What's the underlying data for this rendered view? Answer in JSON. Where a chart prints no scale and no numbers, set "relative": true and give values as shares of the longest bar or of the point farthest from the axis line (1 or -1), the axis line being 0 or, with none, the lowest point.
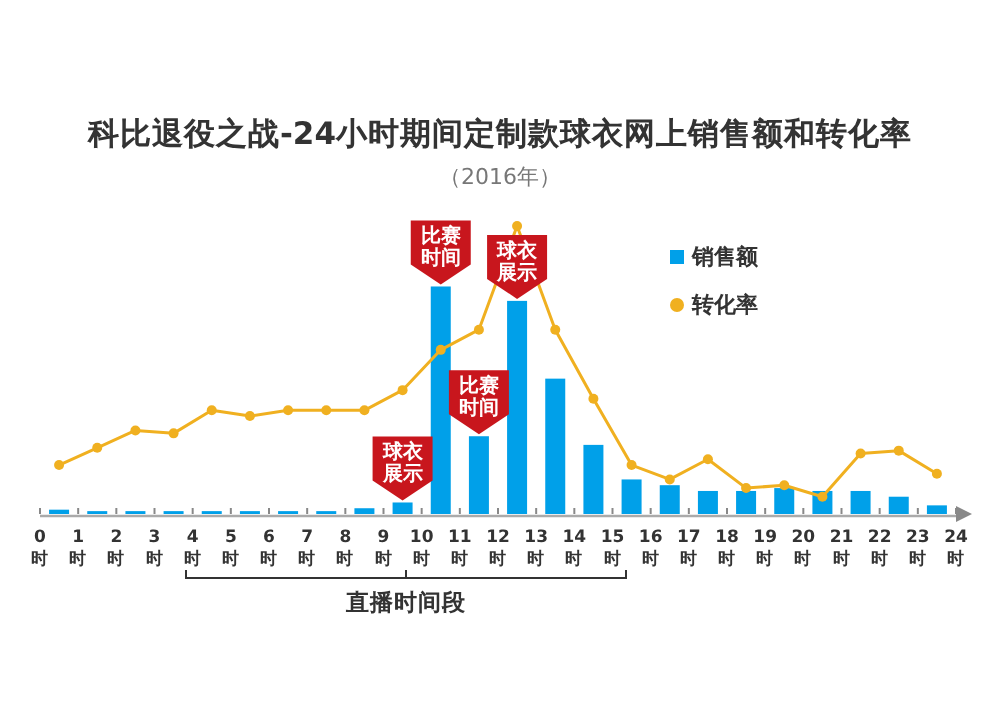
{
  "chart_data": {
    "type": "bar",
    "title": "科比退役之战-24小时期间定制款球衣网上销售额和转化率",
    "subtitle": "（2016年）",
    "relative": true,
    "x": [
      0.5,
      1.5,
      2.5,
      3.5,
      4.5,
      5.5,
      6.5,
      7.5,
      8.5,
      9.5,
      10.5,
      11.5,
      12.5,
      13.5,
      14.5,
      15.5,
      16.5,
      17.5,
      18.5,
      19.5,
      20.5,
      21.5,
      22.5,
      23.5
    ],
    "xlim": [
      0,
      24
    ],
    "xticks": [
      {
        "value": 0,
        "label": "0时"
      },
      {
        "value": 1,
        "label": "1时"
      },
      {
        "value": 2,
        "label": "2时"
      },
      {
        "value": 3,
        "label": "3时"
      },
      {
        "value": 4,
        "label": "4时"
      },
      {
        "value": 5,
        "label": "5时"
      },
      {
        "value": 6,
        "label": "6时"
      },
      {
        "value": 7,
        "label": "7时"
      },
      {
        "value": 8,
        "label": "8时"
      },
      {
        "value": 9,
        "label": "9时"
      },
      {
        "value": 10,
        "label": "10时"
      },
      {
        "value": 11,
        "label": "11时"
      },
      {
        "value": 12,
        "label": "12时"
      },
      {
        "value": 13,
        "label": "13时"
      },
      {
        "value": 14,
        "label": "14时"
      },
      {
        "value": 15,
        "label": "15时"
      },
      {
        "value": 16,
        "label": "16时"
      },
      {
        "value": 17,
        "label": "17时"
      },
      {
        "value": 18,
        "label": "18时"
      },
      {
        "value": 19,
        "label": "19时"
      },
      {
        "value": 20,
        "label": "20时"
      },
      {
        "value": 21,
        "label": "21时"
      },
      {
        "value": 22,
        "label": "22时"
      },
      {
        "value": 23,
        "label": "23时"
      },
      {
        "value": 24,
        "label": "24时"
      }
    ],
    "series": [
      {
        "name": "销售额",
        "color": "#00a0e9",
        "values": [
          0.015,
          0.01,
          0.01,
          0.01,
          0.01,
          0.01,
          0.01,
          0.01,
          0.02,
          0.04,
          0.79,
          0.27,
          0.74,
          0.47,
          0.24,
          0.12,
          0.1,
          0.08,
          0.08,
          0.09,
          0.08,
          0.08,
          0.06,
          0.03
        ]
      },
      {
        "name": "转化率",
        "type": "line",
        "color": "#f0b020",
        "marker": "circle",
        "values": [
          0.17,
          0.23,
          0.29,
          0.28,
          0.36,
          0.34,
          0.36,
          0.36,
          0.36,
          0.43,
          0.57,
          0.64,
          1,
          0.64,
          0.4,
          0.17,
          0.12,
          0.19,
          0.09,
          0.1,
          0.06,
          0.21,
          0.22,
          0.14
        ]
      }
    ],
    "annotations": [
      {
        "text": "比赛时间",
        "x": 10.5,
        "y": 0.79
      },
      {
        "text": "球衣展示",
        "x": 12.5,
        "y": 0.74
      },
      {
        "text": "球衣展示",
        "x": 9.5,
        "y": 0.04
      },
      {
        "text": "比赛时间",
        "x": 11.5,
        "y": 0.27
      },
      "直播时间段"
    ],
    "legend": "top right",
    "grid": false
  }
}
